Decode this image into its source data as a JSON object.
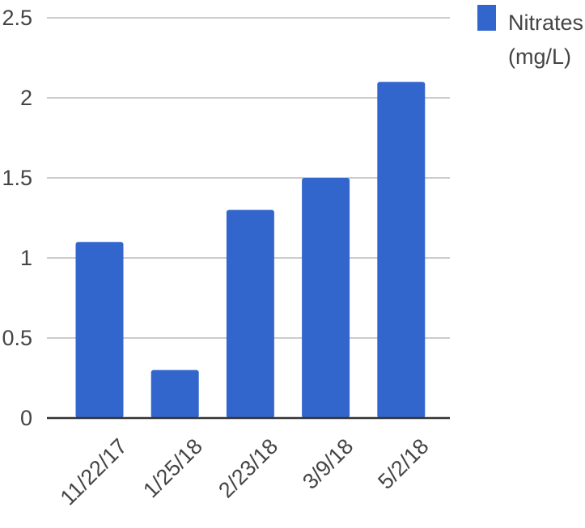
{
  "chart_data": {
    "type": "bar",
    "categories": [
      "11/22/17",
      "1/25/18",
      "2/23/18",
      "3/9/18",
      "5/2/18"
    ],
    "series": [
      {
        "name": "Nitrates (mg/L)",
        "values": [
          1.1,
          0.3,
          1.3,
          1.5,
          2.1
        ],
        "color": "#3366cc"
      }
    ],
    "title": "",
    "xlabel": "",
    "ylabel": "",
    "ylim": [
      0,
      2.5
    ],
    "yticks": [
      "0",
      "0.5",
      "1",
      "1.5",
      "2",
      "2.5"
    ],
    "grid": true,
    "legend": {
      "position": "top-right",
      "lines": [
        "Nitrates",
        "(mg/L)"
      ]
    }
  }
}
